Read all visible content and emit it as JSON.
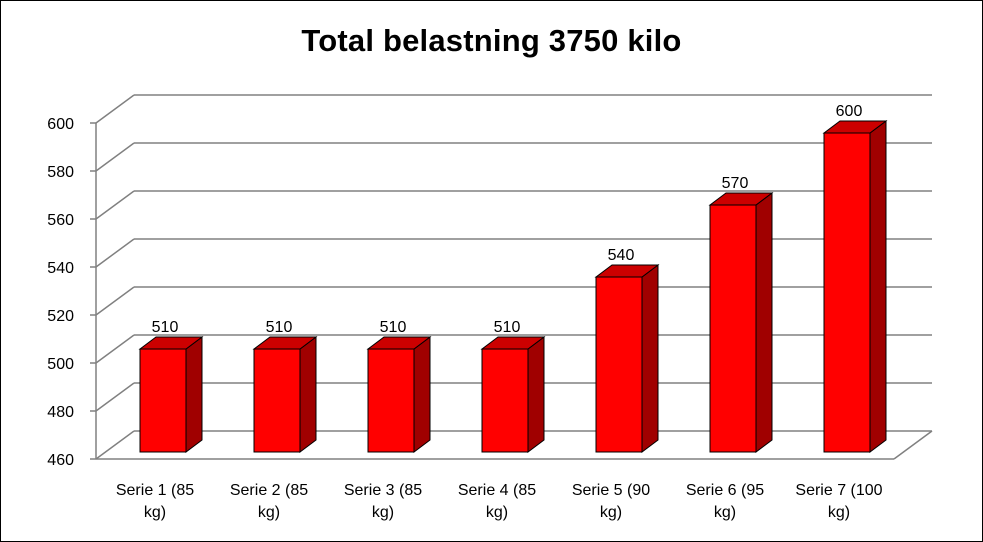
{
  "chart_data": {
    "type": "bar",
    "title": "Total belastning 3750 kilo",
    "xlabel": "",
    "ylabel": "",
    "categories": [
      [
        "Serie 1 (85",
        "kg)"
      ],
      [
        "Serie 2 (85",
        "kg)"
      ],
      [
        "Serie 3 (85",
        "kg)"
      ],
      [
        "Serie 4 (85",
        "kg)"
      ],
      [
        "Serie 5 (90",
        "kg)"
      ],
      [
        "Serie 6 (95",
        "kg)"
      ],
      [
        "Serie 7 (100",
        "kg)"
      ]
    ],
    "values": [
      510,
      510,
      510,
      510,
      540,
      570,
      600
    ],
    "data_labels": [
      "510",
      "510",
      "510",
      "510",
      "540",
      "570",
      "600"
    ],
    "ylim": [
      460,
      600
    ],
    "yticks": [
      "460",
      "480",
      "500",
      "520",
      "540",
      "560",
      "580",
      "600"
    ],
    "grid": true,
    "legend": "none",
    "style": "3d-clustered-column",
    "colors": {
      "bar_front": "#ff0000",
      "bar_side": "#a00000",
      "bar_top": "#cc0000",
      "bar_outline": "#000000",
      "gridline": "#808080",
      "wall": "#ffffff"
    }
  }
}
